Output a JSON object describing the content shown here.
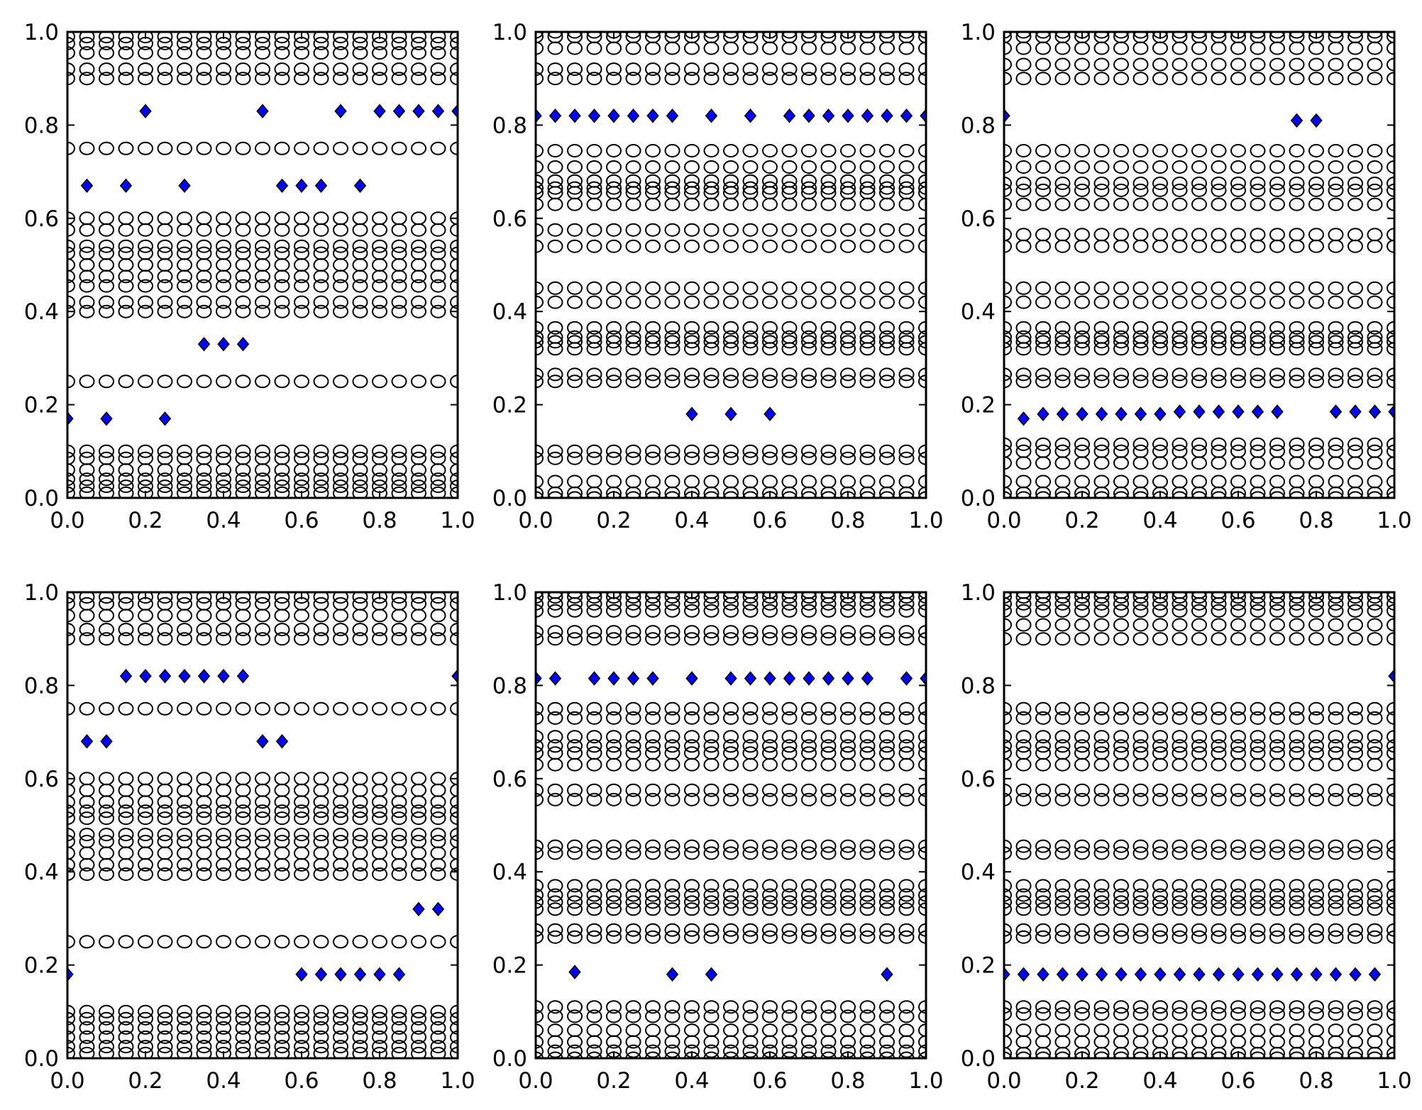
{
  "chart_data": [
    {
      "type": "scatter",
      "xlim": [
        0,
        1
      ],
      "ylim": [
        0,
        1
      ],
      "xticks": [
        "0.0",
        "0.2",
        "0.4",
        "0.6",
        "0.8",
        "1.0"
      ],
      "yticks": [
        "0.0",
        "0.2",
        "0.4",
        "0.6",
        "0.8",
        "1.0"
      ],
      "grid": false,
      "series": [
        {
          "marker": "circle-open",
          "color": "#000000",
          "y_levels": [
            0.01,
            0.025,
            0.04,
            0.06,
            0.085,
            0.1,
            0.25,
            0.4,
            0.42,
            0.455,
            0.475,
            0.5,
            0.525,
            0.54,
            0.575,
            0.6,
            0.75,
            0.9,
            0.92,
            0.955,
            0.975,
            0.99
          ]
        },
        {
          "marker": "diamond",
          "color": "#0000ff",
          "points": [
            [
              0.0,
              0.17
            ],
            [
              0.05,
              0.67
            ],
            [
              0.1,
              0.17
            ],
            [
              0.15,
              0.67
            ],
            [
              0.2,
              0.83
            ],
            [
              0.25,
              0.17
            ],
            [
              0.3,
              0.67
            ],
            [
              0.35,
              0.33
            ],
            [
              0.4,
              0.33
            ],
            [
              0.45,
              0.33
            ],
            [
              0.5,
              0.83
            ],
            [
              0.55,
              0.67
            ],
            [
              0.6,
              0.67
            ],
            [
              0.65,
              0.67
            ],
            [
              0.7,
              0.83
            ],
            [
              0.75,
              0.67
            ],
            [
              0.8,
              0.83
            ],
            [
              0.85,
              0.83
            ],
            [
              0.9,
              0.83
            ],
            [
              0.95,
              0.83
            ],
            [
              1.0,
              0.83
            ]
          ]
        }
      ]
    },
    {
      "type": "scatter",
      "xlim": [
        0,
        1
      ],
      "ylim": [
        0,
        1
      ],
      "xticks": [
        "0.0",
        "0.2",
        "0.4",
        "0.6",
        "0.8",
        "1.0"
      ],
      "yticks": [
        "0.0",
        "0.2",
        "0.4",
        "0.6",
        "0.8",
        "1.0"
      ],
      "grid": false,
      "series": [
        {
          "marker": "circle-open",
          "color": "#000000",
          "y_levels": [
            0.0,
            0.01,
            0.035,
            0.085,
            0.1,
            0.25,
            0.265,
            0.32,
            0.335,
            0.345,
            0.365,
            0.42,
            0.45,
            0.54,
            0.575,
            0.63,
            0.655,
            0.665,
            0.68,
            0.71,
            0.745,
            0.9,
            0.92,
            0.965,
            0.99,
            1.0
          ]
        },
        {
          "marker": "diamond",
          "color": "#0000ff",
          "points": [
            [
              0.0,
              0.82
            ],
            [
              0.05,
              0.82
            ],
            [
              0.1,
              0.82
            ],
            [
              0.15,
              0.82
            ],
            [
              0.2,
              0.82
            ],
            [
              0.25,
              0.82
            ],
            [
              0.3,
              0.82
            ],
            [
              0.35,
              0.82
            ],
            [
              0.4,
              0.18
            ],
            [
              0.45,
              0.82
            ],
            [
              0.5,
              0.18
            ],
            [
              0.55,
              0.82
            ],
            [
              0.6,
              0.18
            ],
            [
              0.65,
              0.82
            ],
            [
              0.7,
              0.82
            ],
            [
              0.75,
              0.82
            ],
            [
              0.8,
              0.82
            ],
            [
              0.85,
              0.82
            ],
            [
              0.9,
              0.82
            ],
            [
              0.95,
              0.82
            ],
            [
              1.0,
              0.82
            ]
          ]
        }
      ]
    },
    {
      "type": "scatter",
      "xlim": [
        0,
        1
      ],
      "ylim": [
        0,
        1
      ],
      "xticks": [
        "0.0",
        "0.2",
        "0.4",
        "0.6",
        "0.8",
        "1.0"
      ],
      "yticks": [
        "0.0",
        "0.2",
        "0.4",
        "0.6",
        "0.8",
        "1.0"
      ],
      "grid": false,
      "series": [
        {
          "marker": "circle-open",
          "color": "#000000",
          "y_levels": [
            0.0,
            0.01,
            0.035,
            0.075,
            0.1,
            0.115,
            0.25,
            0.265,
            0.32,
            0.335,
            0.345,
            0.365,
            0.42,
            0.45,
            0.54,
            0.565,
            0.63,
            0.66,
            0.675,
            0.71,
            0.745,
            0.9,
            0.93,
            0.965,
            0.99,
            1.0
          ]
        },
        {
          "marker": "diamond",
          "color": "#0000ff",
          "points": [
            [
              0.0,
              0.82
            ],
            [
              0.05,
              0.17
            ],
            [
              0.1,
              0.18
            ],
            [
              0.15,
              0.18
            ],
            [
              0.2,
              0.18
            ],
            [
              0.25,
              0.18
            ],
            [
              0.3,
              0.18
            ],
            [
              0.35,
              0.18
            ],
            [
              0.4,
              0.18
            ],
            [
              0.45,
              0.185
            ],
            [
              0.5,
              0.185
            ],
            [
              0.55,
              0.185
            ],
            [
              0.6,
              0.185
            ],
            [
              0.65,
              0.185
            ],
            [
              0.7,
              0.185
            ],
            [
              0.75,
              0.81
            ],
            [
              0.8,
              0.81
            ],
            [
              0.85,
              0.185
            ],
            [
              0.9,
              0.185
            ],
            [
              0.95,
              0.185
            ],
            [
              1.0,
              0.185
            ]
          ]
        }
      ]
    },
    {
      "type": "scatter",
      "xlim": [
        0,
        1
      ],
      "ylim": [
        0,
        1
      ],
      "xticks": [
        "0.0",
        "0.2",
        "0.4",
        "0.6",
        "0.8",
        "1.0"
      ],
      "yticks": [
        "0.0",
        "0.2",
        "0.4",
        "0.6",
        "0.8",
        "1.0"
      ],
      "grid": false,
      "series": [
        {
          "marker": "circle-open",
          "color": "#000000",
          "y_levels": [
            0.01,
            0.025,
            0.045,
            0.065,
            0.085,
            0.1,
            0.25,
            0.395,
            0.415,
            0.44,
            0.465,
            0.48,
            0.515,
            0.53,
            0.55,
            0.575,
            0.6,
            0.75,
            0.9,
            0.92,
            0.95,
            0.975,
            0.99
          ]
        },
        {
          "marker": "diamond",
          "color": "#0000ff",
          "points": [
            [
              0.0,
              0.18
            ],
            [
              0.05,
              0.68
            ],
            [
              0.1,
              0.68
            ],
            [
              0.15,
              0.82
            ],
            [
              0.2,
              0.82
            ],
            [
              0.25,
              0.82
            ],
            [
              0.3,
              0.82
            ],
            [
              0.35,
              0.82
            ],
            [
              0.4,
              0.82
            ],
            [
              0.45,
              0.82
            ],
            [
              0.5,
              0.68
            ],
            [
              0.55,
              0.68
            ],
            [
              0.6,
              0.18
            ],
            [
              0.65,
              0.18
            ],
            [
              0.7,
              0.18
            ],
            [
              0.75,
              0.18
            ],
            [
              0.8,
              0.18
            ],
            [
              0.85,
              0.18
            ],
            [
              0.9,
              0.32
            ],
            [
              0.95,
              0.32
            ],
            [
              1.0,
              0.82
            ]
          ]
        }
      ]
    },
    {
      "type": "scatter",
      "xlim": [
        0,
        1
      ],
      "ylim": [
        0,
        1
      ],
      "xticks": [
        "0.0",
        "0.2",
        "0.4",
        "0.6",
        "0.8",
        "1.0"
      ],
      "yticks": [
        "0.0",
        "0.2",
        "0.4",
        "0.6",
        "0.8",
        "1.0"
      ],
      "grid": false,
      "series": [
        {
          "marker": "circle-open",
          "color": "#000000",
          "y_levels": [
            0.0,
            0.015,
            0.035,
            0.06,
            0.09,
            0.11,
            0.26,
            0.275,
            0.32,
            0.335,
            0.35,
            0.37,
            0.44,
            0.455,
            0.555,
            0.575,
            0.63,
            0.655,
            0.67,
            0.69,
            0.73,
            0.75,
            0.9,
            0.915,
            0.96,
            0.975,
            0.99,
            1.0
          ]
        },
        {
          "marker": "diamond",
          "color": "#0000ff",
          "points": [
            [
              0.0,
              0.815
            ],
            [
              0.05,
              0.815
            ],
            [
              0.1,
              0.185
            ],
            [
              0.15,
              0.815
            ],
            [
              0.2,
              0.815
            ],
            [
              0.25,
              0.815
            ],
            [
              0.3,
              0.815
            ],
            [
              0.35,
              0.18
            ],
            [
              0.4,
              0.815
            ],
            [
              0.45,
              0.18
            ],
            [
              0.5,
              0.815
            ],
            [
              0.55,
              0.815
            ],
            [
              0.6,
              0.815
            ],
            [
              0.65,
              0.815
            ],
            [
              0.7,
              0.815
            ],
            [
              0.75,
              0.815
            ],
            [
              0.8,
              0.815
            ],
            [
              0.85,
              0.815
            ],
            [
              0.9,
              0.18
            ],
            [
              0.95,
              0.815
            ],
            [
              1.0,
              0.815
            ]
          ]
        }
      ]
    },
    {
      "type": "scatter",
      "xlim": [
        0,
        1
      ],
      "ylim": [
        0,
        1
      ],
      "xticks": [
        "0.0",
        "0.2",
        "0.4",
        "0.6",
        "0.8",
        "1.0"
      ],
      "yticks": [
        "0.0",
        "0.2",
        "0.4",
        "0.6",
        "0.8",
        "1.0"
      ],
      "grid": false,
      "series": [
        {
          "marker": "circle-open",
          "color": "#000000",
          "y_levels": [
            0.0,
            0.01,
            0.035,
            0.06,
            0.095,
            0.11,
            0.26,
            0.275,
            0.32,
            0.335,
            0.35,
            0.37,
            0.44,
            0.455,
            0.555,
            0.575,
            0.63,
            0.655,
            0.67,
            0.69,
            0.73,
            0.75,
            0.9,
            0.93,
            0.96,
            0.975,
            0.99,
            1.0
          ]
        },
        {
          "marker": "diamond",
          "color": "#0000ff",
          "points": [
            [
              0.0,
              0.18
            ],
            [
              0.05,
              0.18
            ],
            [
              0.1,
              0.18
            ],
            [
              0.15,
              0.18
            ],
            [
              0.2,
              0.18
            ],
            [
              0.25,
              0.18
            ],
            [
              0.3,
              0.18
            ],
            [
              0.35,
              0.18
            ],
            [
              0.4,
              0.18
            ],
            [
              0.45,
              0.18
            ],
            [
              0.5,
              0.18
            ],
            [
              0.55,
              0.18
            ],
            [
              0.6,
              0.18
            ],
            [
              0.65,
              0.18
            ],
            [
              0.7,
              0.18
            ],
            [
              0.75,
              0.18
            ],
            [
              0.8,
              0.18
            ],
            [
              0.85,
              0.18
            ],
            [
              0.9,
              0.18
            ],
            [
              0.95,
              0.18
            ],
            [
              1.0,
              0.82
            ]
          ]
        }
      ]
    }
  ]
}
